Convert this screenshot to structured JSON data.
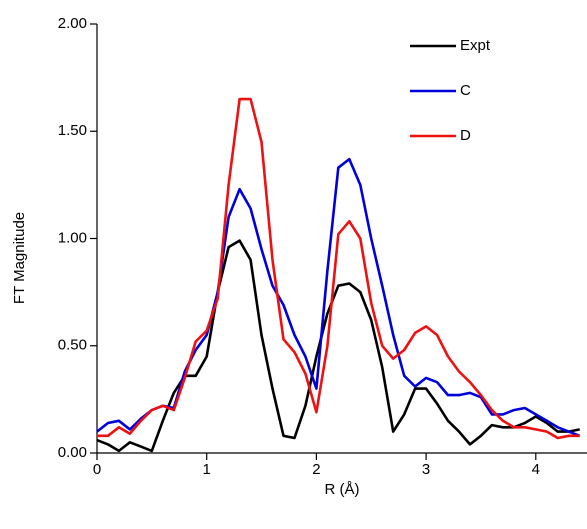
{
  "chart_data": {
    "type": "line",
    "x_label": "R (Å)",
    "y_label": "FT Magnitude",
    "x": [
      0,
      0.1,
      0.2,
      0.3,
      0.4,
      0.5,
      0.6,
      0.7,
      0.8,
      0.9,
      1.0,
      1.1,
      1.2,
      1.3,
      1.4,
      1.5,
      1.6,
      1.7,
      1.8,
      1.9,
      2.0,
      2.1,
      2.2,
      2.3,
      2.4,
      2.5,
      2.6,
      2.7,
      2.8,
      2.9,
      3.0,
      3.1,
      3.2,
      3.3,
      3.4,
      3.5,
      3.6,
      3.7,
      3.8,
      3.9,
      4.0,
      4.1,
      4.2,
      4.3,
      4.4
    ],
    "series": [
      {
        "name": "Expt",
        "color": "#000000",
        "values": [
          0.06,
          0.04,
          0.01,
          0.05,
          0.03,
          0.01,
          0.15,
          0.28,
          0.36,
          0.36,
          0.45,
          0.75,
          0.96,
          0.99,
          0.9,
          0.55,
          0.3,
          0.08,
          0.07,
          0.22,
          0.45,
          0.65,
          0.78,
          0.79,
          0.75,
          0.62,
          0.4,
          0.1,
          0.18,
          0.3,
          0.3,
          0.23,
          0.15,
          0.1,
          0.04,
          0.08,
          0.13,
          0.12,
          0.12,
          0.14,
          0.17,
          0.14,
          0.1,
          0.1,
          0.11
        ]
      },
      {
        "name": "C",
        "color": "#0000dd",
        "values": [
          0.1,
          0.14,
          0.15,
          0.11,
          0.16,
          0.2,
          0.22,
          0.21,
          0.38,
          0.48,
          0.55,
          0.75,
          1.1,
          1.23,
          1.14,
          0.95,
          0.78,
          0.69,
          0.55,
          0.45,
          0.3,
          0.85,
          1.33,
          1.37,
          1.25,
          1.0,
          0.78,
          0.55,
          0.36,
          0.31,
          0.35,
          0.33,
          0.27,
          0.27,
          0.28,
          0.26,
          0.18,
          0.18,
          0.2,
          0.21,
          0.18,
          0.15,
          0.12,
          0.1,
          0.08
        ]
      },
      {
        "name": "D",
        "color": "#ee1111",
        "values": [
          0.08,
          0.08,
          0.12,
          0.09,
          0.15,
          0.2,
          0.22,
          0.2,
          0.35,
          0.52,
          0.57,
          0.72,
          1.25,
          1.65,
          1.65,
          1.45,
          0.9,
          0.53,
          0.47,
          0.37,
          0.19,
          0.5,
          1.02,
          1.08,
          1.0,
          0.7,
          0.5,
          0.44,
          0.48,
          0.56,
          0.59,
          0.55,
          0.45,
          0.38,
          0.33,
          0.27,
          0.2,
          0.15,
          0.12,
          0.12,
          0.11,
          0.1,
          0.07,
          0.08,
          0.08
        ]
      }
    ],
    "xlim": [
      0,
      4.47
    ],
    "xticks": [
      0,
      1,
      2,
      3,
      4
    ],
    "ylim": [
      0,
      2
    ],
    "yticks": [
      {
        "value": 0,
        "label": "0.00"
      },
      {
        "value": 0.5,
        "label": "0.50"
      },
      {
        "value": 1,
        "label": "1.00"
      },
      {
        "value": 1.5,
        "label": "1.50"
      },
      {
        "value": 2,
        "label": "2.00"
      }
    ],
    "legend": "top-right"
  }
}
